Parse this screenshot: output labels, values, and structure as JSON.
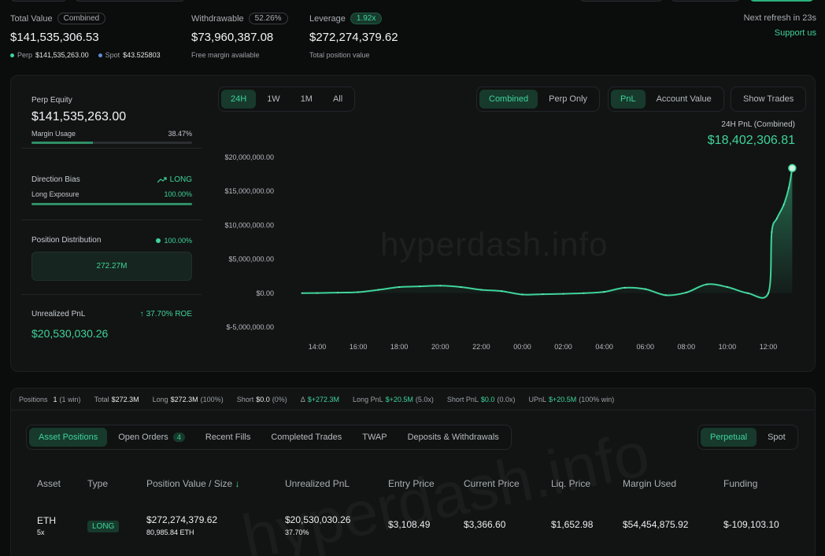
{
  "header": {
    "total_value": {
      "label": "Total Value",
      "badge": "Combined",
      "value": "$141,535,306.53",
      "perp_label": "Perp",
      "perp_value": "$141,535,263.00",
      "spot_label": "Spot",
      "spot_value": "$43.525803"
    },
    "withdrawable": {
      "label": "Withdrawable",
      "badge": "52.26%",
      "value": "$73,960,387.08",
      "sub": "Free margin available"
    },
    "leverage": {
      "label": "Leverage",
      "badge": "1.92x",
      "value": "$272,274,379.62",
      "sub": "Total position value"
    },
    "refresh": "Next refresh in 23s",
    "support": "Support us"
  },
  "sidebar": {
    "perp_equity": {
      "title": "Perp Equity",
      "value": "$141,535,263.00",
      "margin_label": "Margin Usage",
      "margin_pct": "38.47%",
      "margin_fraction": 0.3847
    },
    "direction": {
      "title": "Direction Bias",
      "bias": "LONG",
      "exposure_label": "Long Exposure",
      "exposure_pct": "100.00%",
      "exposure_fraction": 1.0
    },
    "distribution": {
      "title": "Position Distribution",
      "pct": "100.00%",
      "bar_value": "272.27M"
    },
    "upnl": {
      "title": "Unrealized PnL",
      "roe": "37.70% ROE",
      "value": "$20,530,030.26"
    }
  },
  "chart_controls": {
    "ranges": [
      "24H",
      "1W",
      "1M",
      "All"
    ],
    "active_range": "24H",
    "modes": [
      "Combined",
      "Perp Only"
    ],
    "active_mode": "Combined",
    "metrics": [
      "PnL",
      "Account Value"
    ],
    "active_metric": "PnL",
    "show_trades": "Show Trades"
  },
  "chart_header": {
    "label": "24H PnL (Combined)",
    "value": "$18,402,306.81"
  },
  "watermark": "hyperdash.info",
  "chart_data": {
    "type": "area",
    "x": [
      "13:15",
      "14:00",
      "15:00",
      "16:00",
      "17:00",
      "18:00",
      "19:00",
      "20:00",
      "21:00",
      "22:00",
      "23:00",
      "00:00",
      "01:00",
      "02:00",
      "03:00",
      "04:00",
      "05:00",
      "06:00",
      "07:00",
      "08:00",
      "09:00",
      "10:00",
      "11:00",
      "12:00",
      "12:10",
      "12:25",
      "12:45",
      "13:00",
      "13:10"
    ],
    "values": [
      0,
      20000,
      80000,
      150000,
      500000,
      900000,
      1000000,
      1100000,
      900000,
      500000,
      300000,
      -200000,
      -150000,
      -100000,
      0,
      200000,
      800000,
      600000,
      -300000,
      100000,
      1300000,
      900000,
      0,
      0,
      9000000,
      11000000,
      13000000,
      15500000,
      18402306.81
    ],
    "xticks": [
      "14:00",
      "16:00",
      "18:00",
      "20:00",
      "22:00",
      "00:00",
      "02:00",
      "04:00",
      "06:00",
      "08:00",
      "10:00",
      "12:00"
    ],
    "yticks": [
      "$20,000,000.00",
      "$15,000,000.00",
      "$10,000,000.00",
      "$5,000,000.00",
      "$0.00",
      "$-5,000,000.00"
    ],
    "ylim": [
      -5000000,
      20000000
    ],
    "color": "#3ed49a"
  },
  "summary": {
    "positions_label": "Positions",
    "positions_count": "1",
    "positions_win": "(1 win)",
    "total_label": "Total",
    "total_value": "$272.3M",
    "long_label": "Long",
    "long_value": "$272.3M",
    "long_pct": "(100%)",
    "short_label": "Short",
    "short_value": "$0.0",
    "short_pct": "(0%)",
    "delta_label": "Δ",
    "delta_value": "$+272.3M",
    "long_pnl_label": "Long PnL",
    "long_pnl_value": "$+20.5M",
    "long_pnl_x": "(5.0x)",
    "short_pnl_label": "Short PnL",
    "short_pnl_value": "$0.0",
    "short_pnl_x": "(0.0x)",
    "upnl_label": "UPnL",
    "upnl_value": "$+20.5M",
    "upnl_win": "(100% win)"
  },
  "tabs": {
    "items": [
      "Asset Positions",
      "Open Orders",
      "Recent Fills",
      "Completed Trades",
      "TWAP",
      "Deposits & Withdrawals"
    ],
    "open_orders_count": "4",
    "active": "Asset Positions",
    "market": [
      "Perpetual",
      "Spot"
    ],
    "active_market": "Perpetual"
  },
  "table": {
    "headers": [
      "Asset",
      "Type",
      "Position Value / Size",
      "Unrealized PnL",
      "Entry Price",
      "Current Price",
      "Liq. Price",
      "Margin Used",
      "Funding"
    ],
    "sort_arrow": "↓",
    "rows": [
      {
        "asset": "ETH",
        "leverage": "5x",
        "type": "LONG",
        "position_value": "$272,274,379.62",
        "size": "80,985.84 ETH",
        "upnl": "$20,530,030.26",
        "upnl_pct": "37.70%",
        "entry": "$3,108.49",
        "current": "$3,366.60",
        "liq": "$1,652.98",
        "margin": "$54,454,875.92",
        "funding": "$-109,103.10"
      }
    ]
  }
}
